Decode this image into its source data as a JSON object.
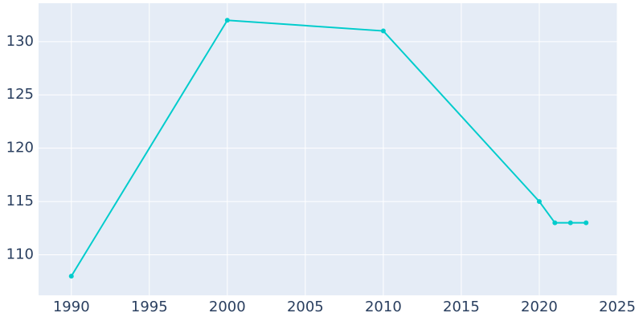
{
  "chart_data": {
    "type": "line",
    "x": [
      1990,
      2000,
      2010,
      2020,
      2021,
      2022,
      2023
    ],
    "series": [
      {
        "color": "#00cccc",
        "values": [
          108,
          132,
          131,
          115,
          113,
          113,
          113
        ]
      }
    ],
    "xlim": [
      1987.9,
      2025
    ],
    "xticks": [
      1990,
      1995,
      2000,
      2005,
      2010,
      2015,
      2020,
      2025
    ],
    "ylim": [
      106.2,
      133.6
    ],
    "yticks": [
      110,
      115,
      120,
      125,
      130
    ],
    "grid": true
  }
}
